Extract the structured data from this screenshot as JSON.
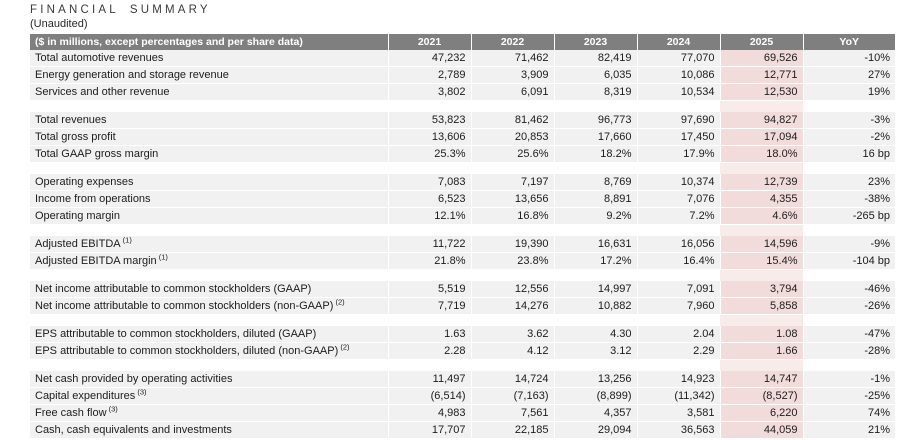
{
  "page": {
    "title": "FINANCIAL SUMMARY",
    "subtitle": "(Unaudited)"
  },
  "colors": {
    "header_bg": "#7f7f7f",
    "header_text": "#ffffff",
    "row_bg": "#f1f1f1",
    "highlight_2025_bg": "#f1dcdb",
    "highlight_gap_bg": "#f8eceb",
    "body_text": "#1c1c1c"
  },
  "table": {
    "header": [
      "($ in millions, except percentages and per share data)",
      "2021",
      "2022",
      "2023",
      "2024",
      "2025",
      "YoY"
    ],
    "highlight_column": "2025",
    "groups": [
      {
        "rows": [
          {
            "label": "Total automotive revenues",
            "sup": "",
            "values": [
              "47,232",
              "71,462",
              "82,419",
              "77,070",
              "69,526",
              "-10%"
            ]
          },
          {
            "label": "Energy generation and storage revenue",
            "sup": "",
            "values": [
              "2,789",
              "3,909",
              "6,035",
              "10,086",
              "12,771",
              "27%"
            ]
          },
          {
            "label": "Services and other revenue",
            "sup": "",
            "values": [
              "3,802",
              "6,091",
              "8,319",
              "10,534",
              "12,530",
              "19%"
            ]
          }
        ]
      },
      {
        "rows": [
          {
            "label": "Total revenues",
            "sup": "",
            "values": [
              "53,823",
              "81,462",
              "96,773",
              "97,690",
              "94,827",
              "-3%"
            ]
          },
          {
            "label": "Total gross profit",
            "sup": "",
            "values": [
              "13,606",
              "20,853",
              "17,660",
              "17,450",
              "17,094",
              "-2%"
            ]
          },
          {
            "label": "Total GAAP gross margin",
            "sup": "",
            "values": [
              "25.3%",
              "25.6%",
              "18.2%",
              "17.9%",
              "18.0%",
              "16 bp"
            ]
          }
        ]
      },
      {
        "rows": [
          {
            "label": "Operating expenses",
            "sup": "",
            "values": [
              "7,083",
              "7,197",
              "8,769",
              "10,374",
              "12,739",
              "23%"
            ]
          },
          {
            "label": "Income from operations",
            "sup": "",
            "values": [
              "6,523",
              "13,656",
              "8,891",
              "7,076",
              "4,355",
              "-38%"
            ]
          },
          {
            "label": "Operating margin",
            "sup": "",
            "values": [
              "12.1%",
              "16.8%",
              "9.2%",
              "7.2%",
              "4.6%",
              "-265 bp"
            ]
          }
        ]
      },
      {
        "rows": [
          {
            "label": "Adjusted EBITDA",
            "sup": "(1)",
            "values": [
              "11,722",
              "19,390",
              "16,631",
              "16,056",
              "14,596",
              "-9%"
            ]
          },
          {
            "label": "Adjusted EBITDA margin",
            "sup": "(1)",
            "values": [
              "21.8%",
              "23.8%",
              "17.2%",
              "16.4%",
              "15.4%",
              "-104 bp"
            ]
          }
        ]
      },
      {
        "rows": [
          {
            "label": "Net income attributable to common stockholders (GAAP)",
            "sup": "",
            "values": [
              "5,519",
              "12,556",
              "14,997",
              "7,091",
              "3,794",
              "-46%"
            ]
          },
          {
            "label": "Net income attributable to common stockholders (non-GAAP)",
            "sup": "(2)",
            "values": [
              "7,719",
              "14,276",
              "10,882",
              "7,960",
              "5,858",
              "-26%"
            ]
          }
        ]
      },
      {
        "rows": [
          {
            "label": "EPS attributable to common stockholders, diluted (GAAP)",
            "sup": "",
            "values": [
              "1.63",
              "3.62",
              "4.30",
              "2.04",
              "1.08",
              "-47%"
            ]
          },
          {
            "label": "EPS attributable to common stockholders, diluted (non-GAAP)",
            "sup": "(2)",
            "values": [
              "2.28",
              "4.12",
              "3.12",
              "2.29",
              "1.66",
              "-28%"
            ]
          }
        ]
      },
      {
        "rows": [
          {
            "label": "Net cash provided by operating activities",
            "sup": "",
            "values": [
              "11,497",
              "14,724",
              "13,256",
              "14,923",
              "14,747",
              "-1%"
            ]
          },
          {
            "label": "Capital expenditures",
            "sup": "(3)",
            "values": [
              "(6,514)",
              "(7,163)",
              "(8,899)",
              "(11,342)",
              "(8,527)",
              "-25%"
            ]
          },
          {
            "label": "Free cash flow",
            "sup": "(3)",
            "values": [
              "4,983",
              "7,561",
              "4,357",
              "3,581",
              "6,220",
              "74%"
            ]
          },
          {
            "label": "Cash, cash equivalents and investments",
            "sup": "",
            "values": [
              "17,707",
              "22,185",
              "29,094",
              "36,563",
              "44,059",
              "21%"
            ]
          }
        ]
      }
    ]
  }
}
